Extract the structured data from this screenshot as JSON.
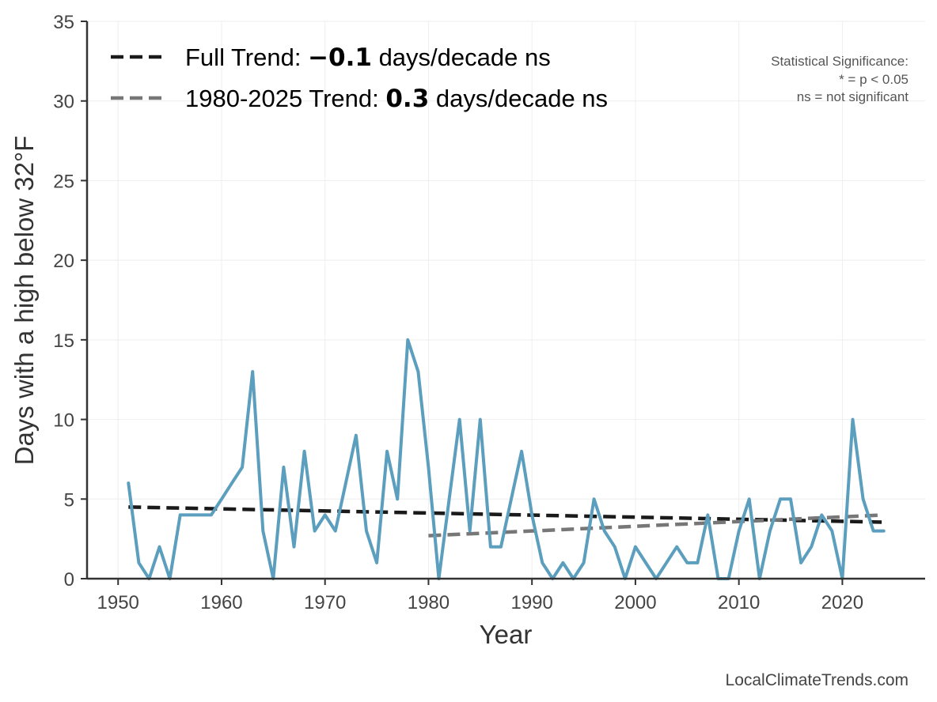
{
  "chart_data": {
    "type": "line",
    "xlabel": "Year",
    "ylabel": "Days with a high below 32°F",
    "xlim": [
      1947,
      2028
    ],
    "ylim": [
      0,
      35
    ],
    "x_ticks": [
      1950,
      1960,
      1970,
      1980,
      1990,
      2000,
      2010,
      2020
    ],
    "y_ticks": [
      0,
      5,
      10,
      15,
      20,
      25,
      30,
      35
    ],
    "grid": true,
    "series": [
      {
        "name": "Days with a high below 32°F",
        "color": "#5b9ebd",
        "x": [
          1951,
          1952,
          1953,
          1954,
          1955,
          1956,
          1957,
          1958,
          1959,
          1960,
          1961,
          1962,
          1963,
          1964,
          1965,
          1966,
          1967,
          1968,
          1969,
          1970,
          1971,
          1972,
          1973,
          1974,
          1975,
          1976,
          1977,
          1978,
          1979,
          1980,
          1981,
          1982,
          1983,
          1984,
          1985,
          1986,
          1987,
          1988,
          1989,
          1990,
          1991,
          1992,
          1993,
          1994,
          1995,
          1996,
          1997,
          1998,
          1999,
          2000,
          2001,
          2002,
          2003,
          2004,
          2005,
          2006,
          2007,
          2008,
          2009,
          2010,
          2011,
          2012,
          2013,
          2014,
          2015,
          2016,
          2017,
          2018,
          2019,
          2020,
          2021,
          2022,
          2023,
          2024
        ],
        "values": [
          6,
          1,
          0,
          2,
          0,
          4,
          4,
          4,
          4,
          5,
          6,
          7,
          13,
          3,
          0,
          7,
          2,
          8,
          3,
          4,
          3,
          6,
          9,
          3,
          1,
          8,
          5,
          15,
          13,
          7,
          0,
          5,
          10,
          3,
          10,
          2,
          2,
          5,
          8,
          4,
          1,
          0,
          1,
          0,
          1,
          5,
          3,
          2,
          0,
          2,
          1,
          0,
          1,
          2,
          1,
          1,
          4,
          0,
          0,
          3,
          5,
          0,
          3,
          5,
          5,
          1,
          2,
          4,
          3,
          0,
          10,
          5,
          3,
          3
        ]
      }
    ],
    "trends": [
      {
        "name": "Full Trend",
        "label_prefix": "Full Trend: ",
        "label_value": "−0.1",
        "label_suffix": " days/decade ns",
        "color": "#1a1a1a",
        "x": [
          1951,
          2024
        ],
        "y": [
          4.5,
          3.55
        ]
      },
      {
        "name": "1980-2025 Trend",
        "label_prefix": "1980-2025 Trend: ",
        "label_value": "0.3",
        "label_suffix": " days/decade ns",
        "color": "#777777",
        "x": [
          1980,
          2024
        ],
        "y": [
          2.7,
          4.0
        ]
      }
    ],
    "legend_position": "top-left",
    "significance_note": [
      "Statistical Significance:",
      "* = p < 0.05",
      "ns = not significant"
    ],
    "credit": "LocalClimateTrends.com"
  }
}
